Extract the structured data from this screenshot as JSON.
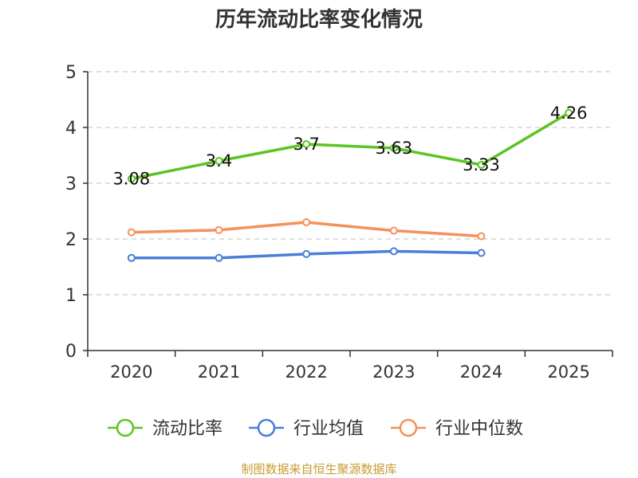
{
  "chart_data": {
    "type": "line",
    "title": "历年流动比率变化情况",
    "categories": [
      "2020",
      "2021",
      "2022",
      "2023",
      "2024",
      "2025"
    ],
    "ylim": [
      0,
      5
    ],
    "yticks": [
      0,
      1,
      2,
      3,
      4,
      5
    ],
    "grid": "horizontal dashed",
    "legend_position": "bottom-center",
    "series": [
      {
        "name": "流动比率",
        "color": "#5cc523",
        "values": [
          3.08,
          3.4,
          3.7,
          3.63,
          3.33,
          4.26
        ],
        "labels": [
          "3.08",
          "3.4",
          "3.7",
          "3.63",
          "3.33",
          "4.26"
        ]
      },
      {
        "name": "行业均值",
        "color": "#4a7fd9",
        "values": [
          1.66,
          1.66,
          1.73,
          1.78,
          1.75,
          null
        ]
      },
      {
        "name": "行业中位数",
        "color": "#f5915a",
        "values": [
          2.12,
          2.16,
          2.3,
          2.15,
          2.05,
          null
        ]
      }
    ]
  },
  "footer": {
    "source": "制图数据来自恒生聚源数据库"
  }
}
